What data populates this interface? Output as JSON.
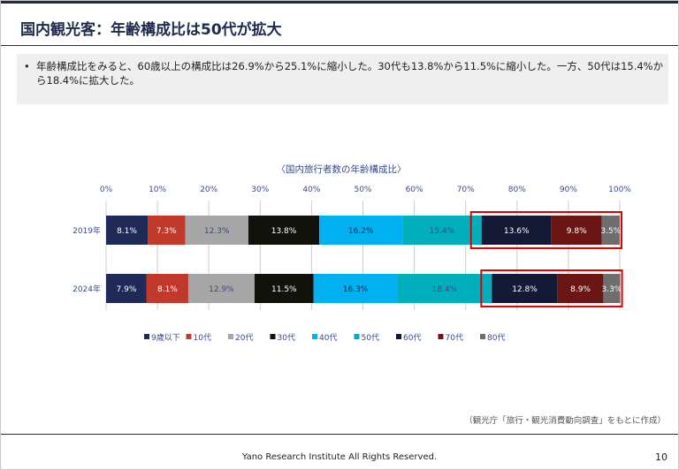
{
  "slide": {
    "title": "国内観光客：年齢構成比は50代が拡大",
    "summary_bullet": "•",
    "summary": "年齢構成比をみると、60歳以上の構成比は26.9%から25.1%に縮小した。30代も13.8%から11.5%に縮小した。一方、50代は15.4%から18.4%に拡大した。",
    "source": "（観光庁「旅行・観光消費動向調査」をもとに作成）",
    "footer": "Yano Research Institute All Rights Reserved.",
    "page_number": "10"
  },
  "chart_data": {
    "type": "bar",
    "orientation": "horizontal",
    "stacked": true,
    "percent_stacked": true,
    "title": "〈国内旅行者数の年齢構成比〉",
    "x_ticks": [
      "0%",
      "10%",
      "20%",
      "30%",
      "40%",
      "50%",
      "60%",
      "70%",
      "80%",
      "90%",
      "100%"
    ],
    "xlim": [
      0,
      100
    ],
    "categories": [
      "2019年",
      "2024年"
    ],
    "series": [
      {
        "name": "9歳以下",
        "color": "#1f2a57",
        "text_color": "#ffffff",
        "values": [
          8.1,
          7.9
        ],
        "labels": [
          "8.1%",
          "7.9%"
        ]
      },
      {
        "name": "10代",
        "color": "#c0392b",
        "text_color": "#ffffff",
        "values": [
          7.3,
          8.1
        ],
        "labels": [
          "7.3%",
          "8.1%"
        ]
      },
      {
        "name": "20代",
        "color": "#a6a6a6",
        "text_color": "#3b4a8a",
        "values": [
          12.3,
          12.9
        ],
        "labels": [
          "12.3%",
          "12.9%"
        ]
      },
      {
        "name": "30代",
        "color": "#12120c",
        "text_color": "#ffffff",
        "values": [
          13.8,
          11.5
        ],
        "labels": [
          "13.8%",
          "11.5%"
        ]
      },
      {
        "name": "40代",
        "color": "#00b0f0",
        "text_color": "#1f2a57",
        "values": [
          16.2,
          16.3
        ],
        "labels": [
          "16.2%",
          "16.3%"
        ]
      },
      {
        "name": "50代",
        "color": "#00aebc",
        "text_color": "#3b4a8a",
        "values": [
          15.4,
          18.4
        ],
        "labels": [
          "15.4%",
          "18.4%"
        ]
      },
      {
        "name": "60代",
        "color": "#141a36",
        "text_color": "#ffffff",
        "values": [
          13.6,
          12.8
        ],
        "labels": [
          "13.6%",
          "12.8%"
        ]
      },
      {
        "name": "70代",
        "color": "#6b1515",
        "text_color": "#ffffff",
        "values": [
          9.8,
          8.9
        ],
        "labels": [
          "9.8%",
          "8.9%"
        ]
      },
      {
        "name": "80代",
        "color": "#6e6e6e",
        "text_color": "#ffffff",
        "values": [
          3.5,
          3.3
        ],
        "labels": [
          "3.5%",
          "3.3%"
        ]
      }
    ],
    "highlight": {
      "series": [
        "60代",
        "70代",
        "80代"
      ],
      "color": "#e00000"
    },
    "grid": true,
    "legend_position": "bottom",
    "colors": {
      "title": "#1f2a4a",
      "axis_text": "#3b4a8a",
      "grid": "#cccccc"
    }
  }
}
